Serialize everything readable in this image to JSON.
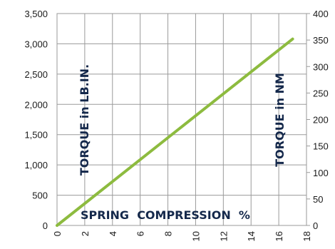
{
  "chart_data": {
    "type": "line",
    "title": "",
    "xlabel": "SPRING  COMPRESSION  %",
    "ylabel_left": "TORQUE in LB.IN.",
    "ylabel_right": "TORQUE in NM",
    "x_ticks": [
      "0",
      "2",
      "4",
      "6",
      "8",
      "10",
      "12",
      "14",
      "16",
      "18"
    ],
    "y_left_ticks": [
      "0",
      "500",
      "1,000",
      "1,500",
      "2,000",
      "2,500",
      "3,000",
      "3,500"
    ],
    "y_right_ticks": [
      "0",
      "50",
      "100",
      "150",
      "200",
      "250",
      "300",
      "350",
      "400"
    ],
    "xlim": [
      0,
      18
    ],
    "ylim_left": [
      0,
      3500
    ],
    "ylim_right": [
      0,
      400
    ],
    "grid": true,
    "colors": {
      "line": "#8dbb3f",
      "grid": "#9a9a9a",
      "axis_title": "#14284b"
    },
    "series": [
      {
        "x": [
          0,
          17
        ],
        "y": [
          0,
          3080
        ]
      }
    ]
  }
}
